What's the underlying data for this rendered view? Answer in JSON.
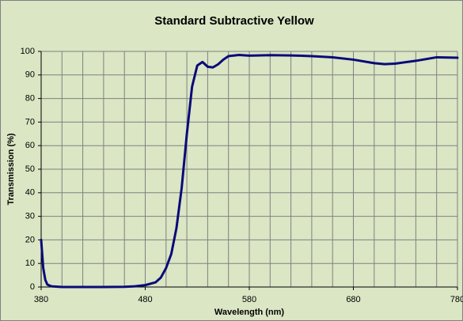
{
  "chart_data": {
    "type": "line",
    "title": "Standard Subtractive Yellow",
    "xlabel": "Wavelength (nm)",
    "ylabel": "Transmission (%)",
    "x": [
      380,
      382,
      384,
      386,
      390,
      400,
      420,
      440,
      460,
      470,
      480,
      490,
      495,
      500,
      505,
      510,
      515,
      520,
      525,
      530,
      535,
      540,
      545,
      550,
      555,
      560,
      570,
      580,
      600,
      620,
      640,
      660,
      680,
      700,
      710,
      720,
      740,
      760,
      780
    ],
    "values": [
      20,
      8,
      3,
      1,
      0.3,
      0,
      0,
      0,
      0.1,
      0.3,
      0.8,
      2,
      4,
      8,
      14,
      25,
      42,
      65,
      85,
      94,
      95.5,
      93.5,
      93.2,
      94.5,
      96.5,
      98,
      98.5,
      98.2,
      98.4,
      98.3,
      98,
      97.5,
      96.5,
      95,
      94.6,
      94.8,
      96,
      97.5,
      97.3
    ],
    "color": "#0a0a78",
    "xlim": [
      380,
      780
    ],
    "xticks": [
      380,
      480,
      580,
      680,
      780
    ],
    "x_minor_ticks": [
      400,
      420,
      440,
      460,
      500,
      520,
      540,
      560,
      600,
      620,
      640,
      660,
      700,
      720,
      740,
      760
    ],
    "ylim": [
      0,
      100
    ],
    "yticks": [
      0,
      10,
      20,
      30,
      40,
      50,
      60,
      70,
      80,
      90,
      100
    ],
    "grid": true
  }
}
